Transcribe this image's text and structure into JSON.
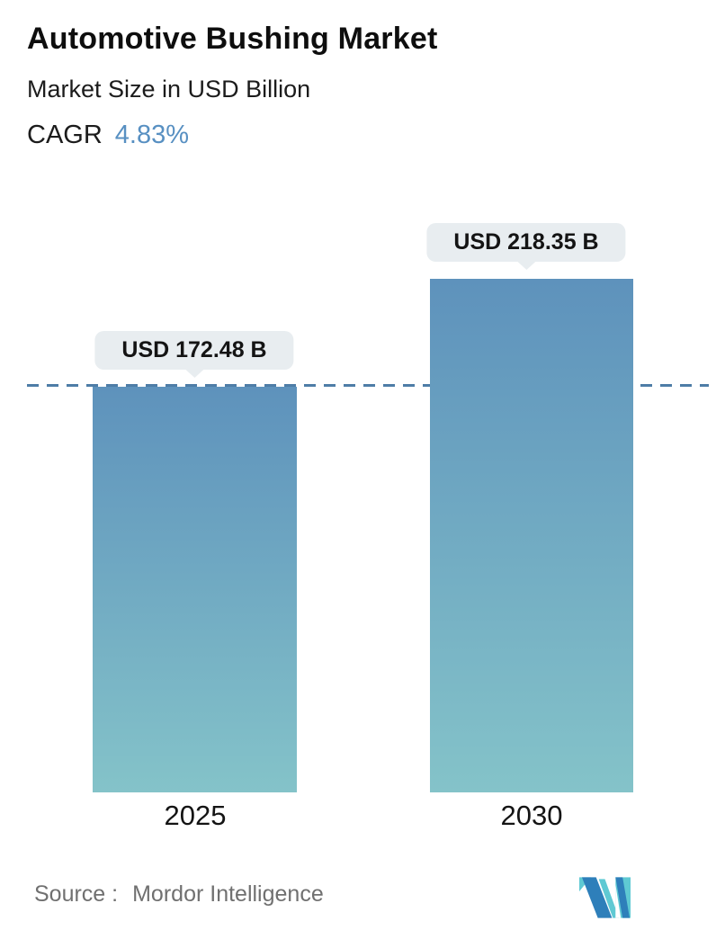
{
  "header": {
    "title": "Automotive Bushing Market",
    "subtitle": "Market Size in USD Billion",
    "cagr_label": "CAGR",
    "cagr_value": "4.83%"
  },
  "chart_data": {
    "type": "bar",
    "title": "Automotive Bushing Market",
    "ylabel": "Market Size in USD Billion",
    "unit": "USD Billion",
    "categories": [
      "2025",
      "2030"
    ],
    "values": [
      172.48,
      218.35
    ],
    "value_labels": [
      "USD 172.48 B",
      "USD 218.35 B"
    ],
    "cagr_percent": 4.83,
    "reference_line": {
      "at_value": 172.48,
      "style": "dashed"
    },
    "legend": "none",
    "grid": "off",
    "ylim": [
      0,
      218.35
    ]
  },
  "footer": {
    "source_label": "Source :",
    "source_value": "Mordor Intelligence",
    "logo_name": "mordor-intelligence-logo"
  },
  "colors": {
    "accent_blue": "#5890c2",
    "bar_gradient_top": "#5e92bc",
    "bar_gradient_bottom": "#84c3c9",
    "dashed_line": "#4e7da7",
    "tooltip_bg": "#e8edf0",
    "source_text": "#707070",
    "logo_teal": "#5fc9d3",
    "logo_blue": "#2e7fba"
  }
}
